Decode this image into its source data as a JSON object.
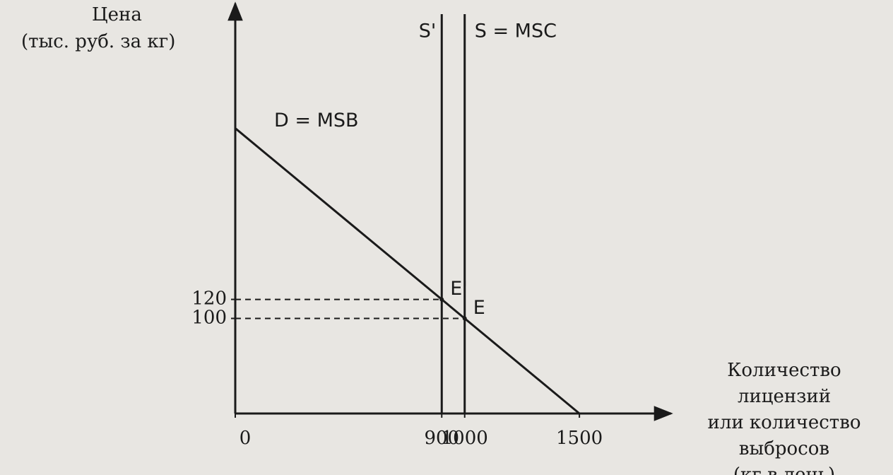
{
  "chart_data": {
    "type": "line",
    "y_label": [
      "Цена",
      "(тыс. руб. за кг)"
    ],
    "x_label": [
      "Количество",
      "лицензий",
      "или количество",
      "выбросов",
      "(кг в день)"
    ],
    "x": [
      0,
      1500
    ],
    "series": [
      {
        "name": "D = MSB",
        "color": "#1a1a1a",
        "values": [
          300,
          0
        ]
      }
    ],
    "vlines": [
      {
        "name": "S'",
        "x": 900,
        "color": "#1a1a1a"
      },
      {
        "name": "S = MSC",
        "x": 1000,
        "color": "#1a1a1a"
      }
    ],
    "points": [
      {
        "label": "E'",
        "x": 900,
        "y": 120
      },
      {
        "label": "E",
        "x": 1000,
        "y": 100
      }
    ],
    "xlim": [
      0,
      1900
    ],
    "ylim": [
      0,
      420
    ],
    "xticks": [
      0,
      900,
      1000,
      1500
    ],
    "yticks": [
      100,
      120
    ],
    "grid": false
  }
}
